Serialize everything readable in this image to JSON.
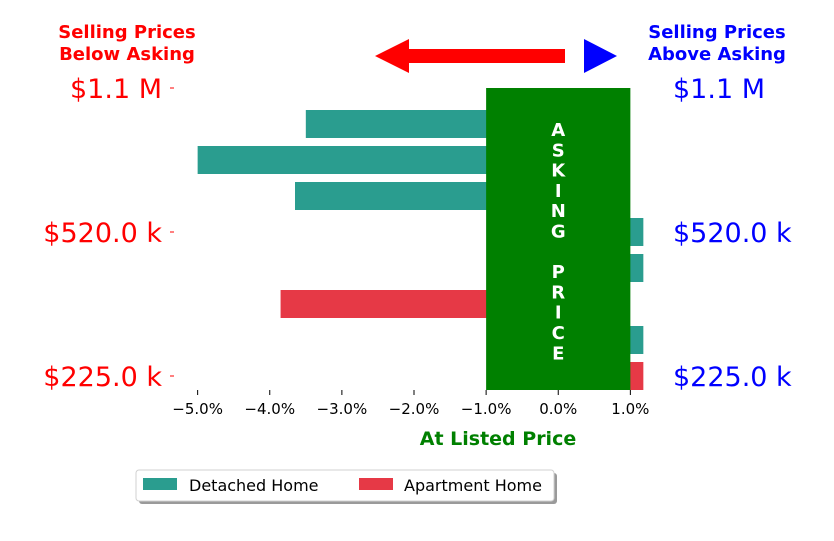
{
  "chart_data": {
    "type": "bar",
    "orientation": "horizontal",
    "title": "",
    "xlabel": "At Listed Price",
    "xlim": [
      -5.3,
      1.3
    ],
    "x_ticks": [
      -5,
      -4,
      -3,
      -2,
      -1,
      0,
      1
    ],
    "x_tick_labels": [
      "−5.0%",
      "−4.0%",
      "−3.0%",
      "−2.0%",
      "−1.0%",
      "0.0%",
      "1.0%"
    ],
    "rows": 8,
    "left_y_tick_labels": [
      "$1.1 M",
      "$520.0 k",
      "$225.0 k"
    ],
    "right_y_tick_labels": [
      "$1.1 M",
      "$520.0 k",
      "$225.0 k"
    ],
    "label_rows": [
      0,
      4,
      8
    ],
    "left_header": [
      "Selling Prices",
      "Below Asking"
    ],
    "right_header": [
      "Selling Prices",
      "Above Asking"
    ],
    "asking_block": {
      "text_top": "ASKING",
      "text_bottom": "PRICE",
      "x_from": -1.0,
      "x_to": 1.0,
      "color": "#008000"
    },
    "series": [
      {
        "name": "Detached Home",
        "color": "#2a9d8f",
        "bars": [
          {
            "row": 1,
            "value": -3.5
          },
          {
            "row": 2,
            "value": -5.0
          },
          {
            "row": 3,
            "value": -3.65
          },
          {
            "row": 4,
            "value": 1.18
          },
          {
            "row": 5,
            "value": 1.18
          },
          {
            "row": 7,
            "value": 1.18
          }
        ]
      },
      {
        "name": "Apartment Home",
        "color": "#e63946",
        "bars": [
          {
            "row": 6,
            "value": -3.85
          },
          {
            "row": 8,
            "value": 1.18
          }
        ]
      }
    ],
    "legend_position": "bottom-center",
    "grid": false
  },
  "colors": {
    "below": "#ff0000",
    "above": "#0000ff",
    "asking": "#008000"
  }
}
